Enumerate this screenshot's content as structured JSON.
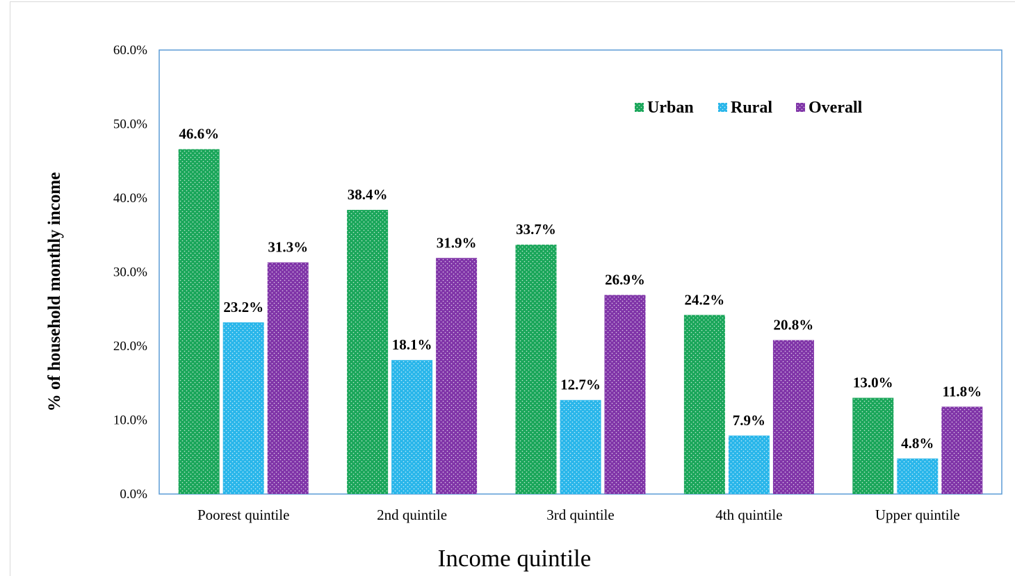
{
  "chart_data": {
    "type": "bar",
    "categories": [
      "Poorest quintile",
      "2nd quintile",
      "3rd quintile",
      "4th quintile",
      "Upper quintile"
    ],
    "series": [
      {
        "name": "Urban",
        "values": [
          46.6,
          38.4,
          33.7,
          24.2,
          13.0
        ],
        "color": "#1aa65a",
        "dot": "#ffffff"
      },
      {
        "name": "Rural",
        "values": [
          23.2,
          18.1,
          12.7,
          7.9,
          4.8
        ],
        "color": "#29b6ea",
        "dot": "#ffffff"
      },
      {
        "name": "Overall",
        "values": [
          31.3,
          31.9,
          26.9,
          20.8,
          11.8
        ],
        "color": "#8035a8",
        "dot": "#ffffff"
      }
    ],
    "data_labels": [
      [
        "46.6%",
        "38.4%",
        "33.7%",
        "24.2%",
        "13.0%"
      ],
      [
        "23.2%",
        "18.1%",
        "12.7%",
        "7.9%",
        "4.8%"
      ],
      [
        "31.3%",
        "31.9%",
        "26.9%",
        "20.8%",
        "11.8%"
      ]
    ],
    "yticks": [
      "0.0%",
      "10.0%",
      "20.0%",
      "30.0%",
      "40.0%",
      "50.0%",
      "60.0%"
    ],
    "ylim": [
      0,
      60
    ],
    "ylabel": "% of household monthly income",
    "xlabel": "Income quintile",
    "legend_position": "top-right",
    "grid": false,
    "plot_border_color": "#5b9bd5"
  }
}
